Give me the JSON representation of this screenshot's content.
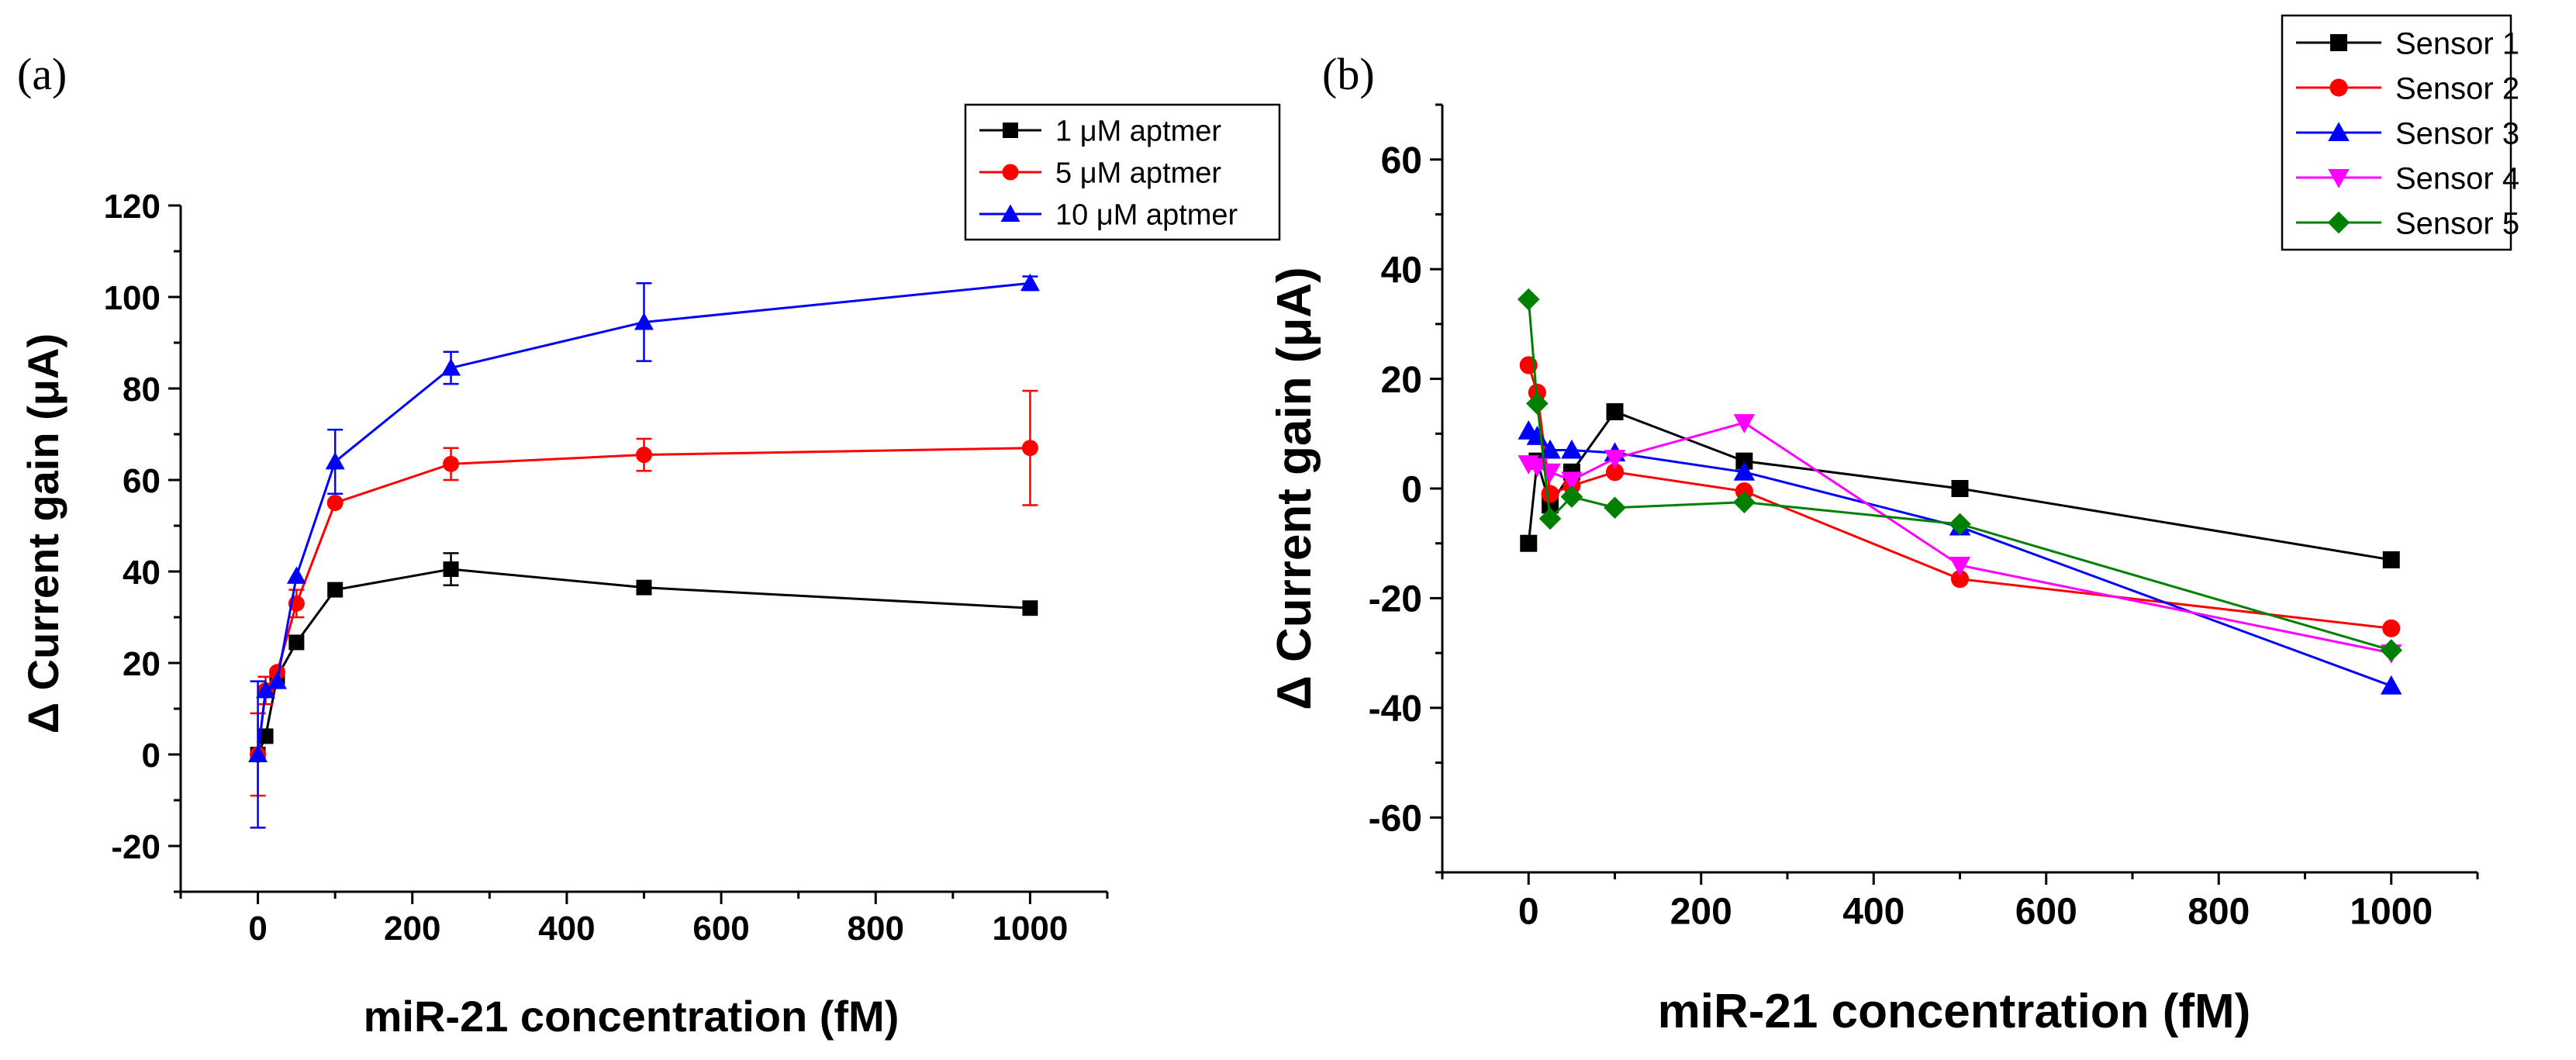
{
  "chart_data": [
    {
      "panel": "(a)",
      "type": "line",
      "title": "",
      "xlabel": "miR-21 concentration (fM)",
      "ylabel": "Δ Current gain (μA)",
      "xlim": [
        -100,
        1100
      ],
      "ylim": [
        -30,
        120
      ],
      "xticks": [
        0,
        200,
        400,
        600,
        800,
        1000
      ],
      "yticks": [
        -20,
        0,
        20,
        40,
        60,
        80,
        100,
        120
      ],
      "legend": "top-right",
      "series": [
        {
          "name": "1 μM aptmer",
          "color": "#000000",
          "marker": "square",
          "x": [
            0,
            10,
            25,
            50,
            100,
            250,
            500,
            1000
          ],
          "y": [
            0,
            4,
            17,
            24.5,
            36,
            40.5,
            36.5,
            32
          ],
          "err": [
            0,
            0,
            0,
            0,
            0,
            3.5,
            0,
            0
          ]
        },
        {
          "name": "5 μM aptmer",
          "color": "#ff0000",
          "marker": "circle",
          "x": [
            0,
            10,
            25,
            50,
            100,
            250,
            500,
            1000
          ],
          "y": [
            0,
            14,
            18,
            33,
            55,
            63.5,
            65.5,
            67
          ],
          "err": [
            9,
            3,
            0,
            3,
            0,
            3.5,
            3.5,
            12.5
          ]
        },
        {
          "name": "10 μM aptmer",
          "color": "#0000ff",
          "marker": "triangle-up",
          "x": [
            0,
            10,
            25,
            50,
            100,
            250,
            500,
            1000
          ],
          "y": [
            0,
            14,
            16,
            39,
            64,
            84.5,
            94.5,
            103
          ],
          "err": [
            16,
            0,
            0,
            0,
            7,
            3.5,
            8.5,
            1.5
          ]
        }
      ]
    },
    {
      "panel": "(b)",
      "type": "line",
      "title": "",
      "xlabel": "miR-21 concentration (fM)",
      "ylabel": "Δ Current gain (μA)",
      "xlim": [
        -100,
        1100
      ],
      "ylim": [
        -70,
        70
      ],
      "xticks": [
        0,
        200,
        400,
        600,
        800,
        1000
      ],
      "yticks": [
        -60,
        -40,
        -20,
        0,
        20,
        40,
        60
      ],
      "legend": "top-right",
      "series": [
        {
          "name": "Sensor 1",
          "color": "#000000",
          "marker": "square",
          "x": [
            0,
            10,
            25,
            50,
            100,
            250,
            500,
            1000
          ],
          "y": [
            -10,
            5,
            -3,
            3,
            14,
            5,
            0,
            -13
          ]
        },
        {
          "name": "Sensor 2",
          "color": "#ff0000",
          "marker": "circle",
          "x": [
            0,
            10,
            25,
            50,
            100,
            250,
            500,
            1000
          ],
          "y": [
            22.5,
            17.5,
            -1,
            0.5,
            3,
            -0.5,
            -16.5,
            -25.5
          ]
        },
        {
          "name": "Sensor 3",
          "color": "#0000ff",
          "marker": "triangle-up",
          "x": [
            0,
            10,
            25,
            50,
            100,
            250,
            500,
            1000
          ],
          "y": [
            10.5,
            9.5,
            7,
            7,
            6.5,
            3,
            -7,
            -36
          ]
        },
        {
          "name": "Sensor 4",
          "color": "#ff00ff",
          "marker": "triangle-down",
          "x": [
            0,
            10,
            25,
            50,
            100,
            250,
            500,
            1000
          ],
          "y": [
            4.5,
            4,
            3,
            1.5,
            5.5,
            12,
            -14,
            -30
          ]
        },
        {
          "name": "Sensor 5",
          "color": "#008000",
          "marker": "diamond",
          "x": [
            0,
            10,
            25,
            50,
            100,
            250,
            500,
            1000
          ],
          "y": [
            34.5,
            15.5,
            -5.5,
            -1.5,
            -3.5,
            -2.5,
            -6.5,
            -29.5
          ]
        }
      ]
    }
  ]
}
